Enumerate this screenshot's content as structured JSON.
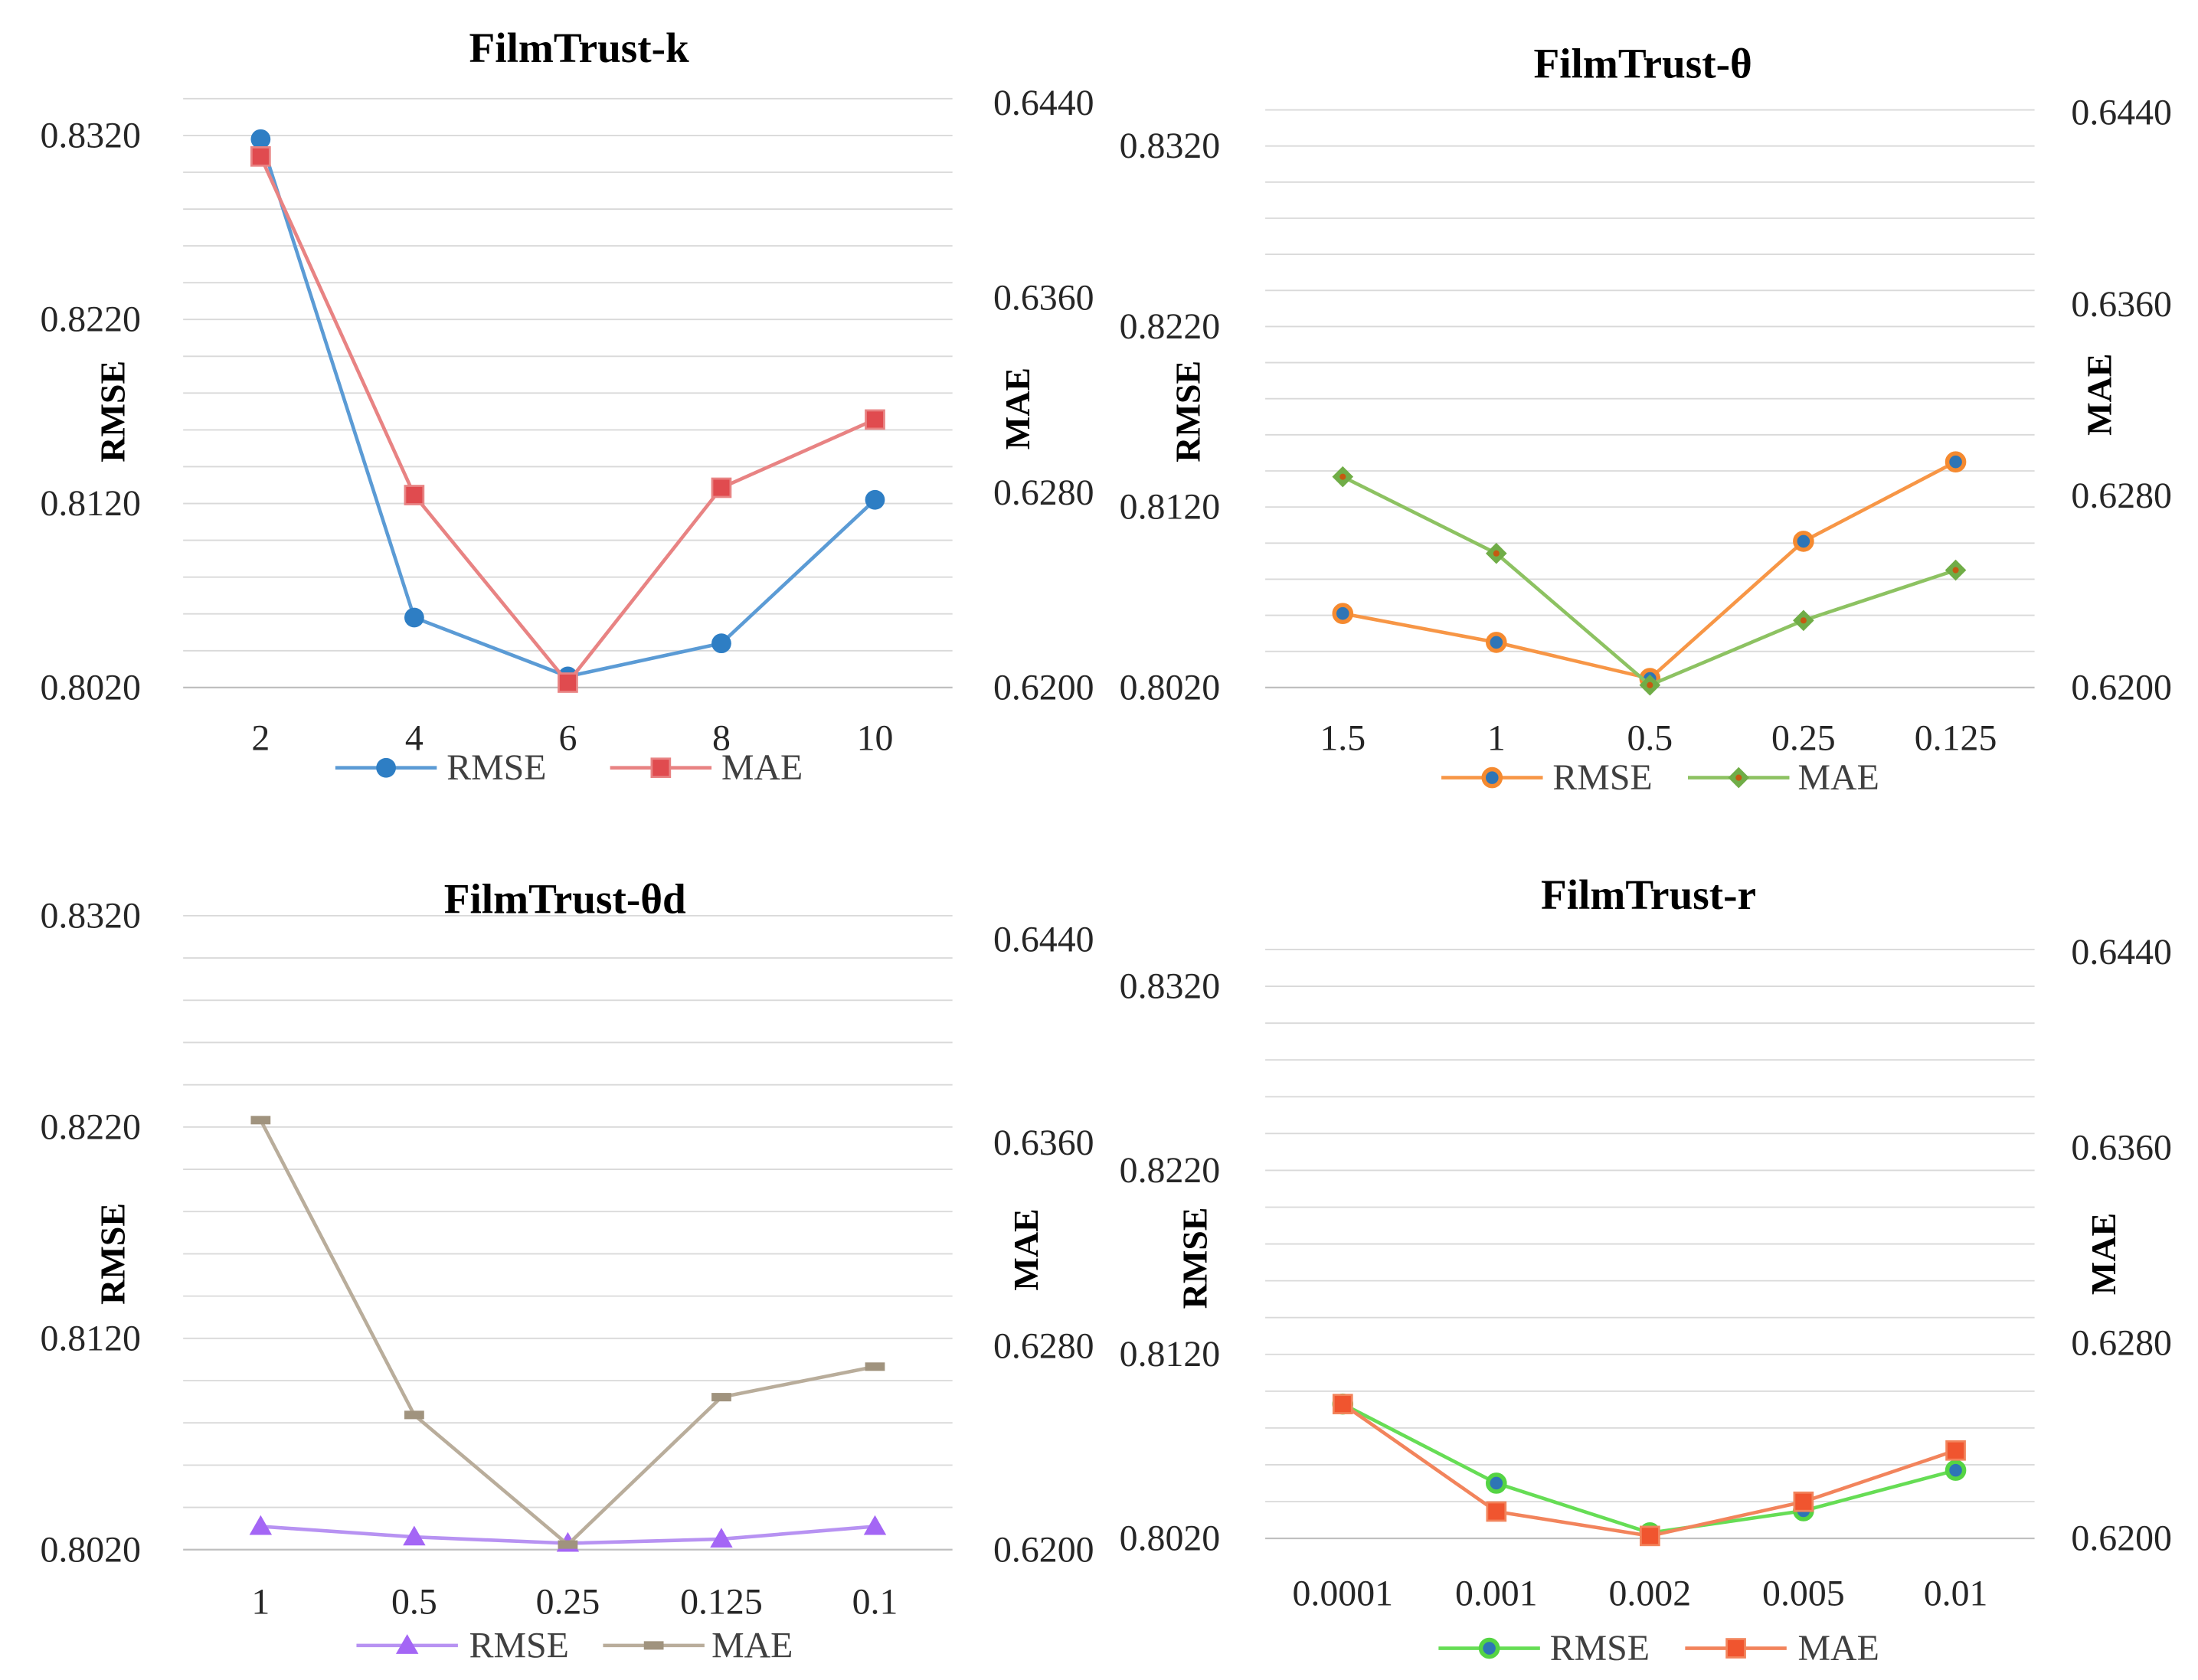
{
  "chart_data": [
    {
      "type": "line",
      "title": "FilmTrust-k",
      "categories": [
        "2",
        "4",
        "6",
        "8",
        "10"
      ],
      "xlabel": "",
      "ylabel_left": "RMSE",
      "ylabel_right": "MAE",
      "ylim_left": [
        0.802,
        0.834
      ],
      "ylim_right": [
        0.62,
        0.644
      ],
      "yticks_left": [
        "0.8020",
        "0.8120",
        "0.8220",
        "0.8320"
      ],
      "yticks_right": [
        "0.6200",
        "0.6280",
        "0.6360",
        "0.6440"
      ],
      "grid": true,
      "series": [
        {
          "name": "RMSE",
          "values": [
            0.8318,
            0.8058,
            0.8026,
            0.8044,
            0.8122
          ],
          "color": "#5B9BD5",
          "marker_color": "#2E7EC4"
        },
        {
          "name": "MAE",
          "values": [
            0.6418,
            0.6279,
            0.6202,
            0.6282,
            0.631
          ],
          "color": "#E88383",
          "marker_color": "#E04B4F"
        }
      ]
    },
    {
      "type": "line",
      "title": "FilmTrust-θ",
      "categories": [
        "1.5",
        "1",
        "0.5",
        "0.25",
        "0.125"
      ],
      "xlabel": "",
      "ylabel_left": "RMSE",
      "ylabel_right": "MAE",
      "ylim_left": [
        0.802,
        0.834
      ],
      "ylim_right": [
        0.62,
        0.644
      ],
      "yticks_left": [
        "0.8020",
        "0.8120",
        "0.8220",
        "0.8320"
      ],
      "yticks_right": [
        "0.6200",
        "0.6280",
        "0.6360",
        "0.6440"
      ],
      "grid": true,
      "series": [
        {
          "name": "RMSE",
          "values": [
            0.8061,
            0.8045,
            0.8025,
            0.8101,
            0.8145
          ],
          "color": "#F79646",
          "marker_color": "#F58A30",
          "marker_fill": "#2E75B6"
        },
        {
          "name": "MAE",
          "values": [
            0.6288,
            0.6256,
            0.6201,
            0.6228,
            0.6249
          ],
          "color": "#8DC262",
          "marker_color": "#70AD47",
          "marker_fill": "#C55A11"
        }
      ]
    },
    {
      "type": "line",
      "title": "FilmTrust-θd",
      "categories": [
        "1",
        "0.5",
        "0.25",
        "0.125",
        "0.1"
      ],
      "xlabel": "",
      "ylabel_left": "RMSE",
      "ylabel_right": "MAE",
      "ylim_left": [
        0.802,
        0.832
      ],
      "ylim_right": [
        0.62,
        0.644
      ],
      "yticks_left": [
        "0.8020",
        "0.8120",
        "0.8220",
        "0.8320"
      ],
      "yticks_right": [
        "0.6200",
        "0.6280",
        "0.6360",
        "0.6440"
      ],
      "grid": true,
      "series": [
        {
          "name": "RMSE",
          "values": [
            0.8031,
            0.8026,
            0.8023,
            0.8025,
            0.8031
          ],
          "color": "#B792F2",
          "marker_color": "#A466F5"
        },
        {
          "name": "MAE",
          "values": [
            0.6369,
            0.6253,
            0.6202,
            0.626,
            0.6272
          ],
          "color": "#B9AD9B",
          "marker_color": "#A0937E"
        }
      ]
    },
    {
      "type": "line",
      "title": "FilmTrust-r",
      "categories": [
        "0.0001",
        "0.001",
        "0.002",
        "0.005",
        "0.01"
      ],
      "xlabel": "",
      "ylabel_left": "RMSE",
      "ylabel_right": "MAE",
      "ylim_left": [
        0.802,
        0.834
      ],
      "ylim_right": [
        0.62,
        0.644
      ],
      "yticks_left": [
        "0.8020",
        "0.8120",
        "0.8220",
        "0.8320"
      ],
      "yticks_right": [
        "0.6200",
        "0.6280",
        "0.6360",
        "0.6440"
      ],
      "grid": true,
      "series": [
        {
          "name": "RMSE",
          "values": [
            0.8093,
            0.805,
            0.8023,
            0.8035,
            0.8057
          ],
          "color": "#66DD55",
          "marker_color": "#55D444",
          "marker_fill": "#2E75B6"
        },
        {
          "name": "MAE",
          "values": [
            0.6255,
            0.6211,
            0.6201,
            0.6215,
            0.6236
          ],
          "color": "#F2845C",
          "marker_color": "#F0552F"
        }
      ]
    }
  ]
}
